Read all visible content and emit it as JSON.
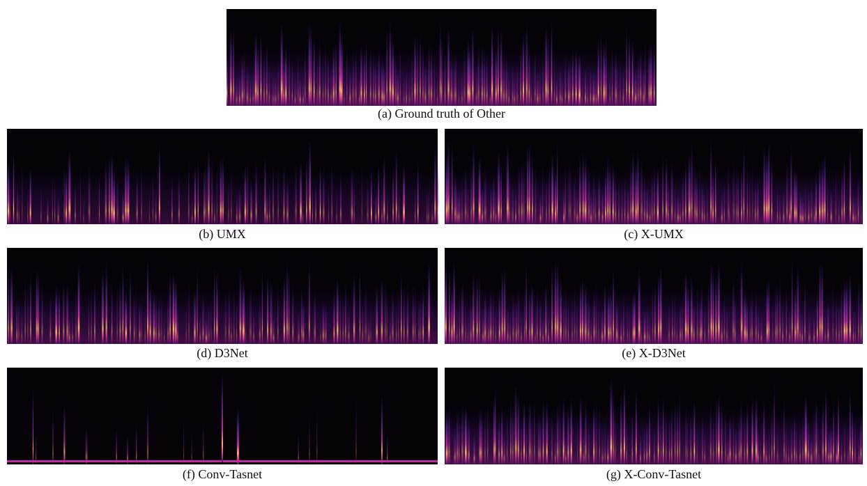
{
  "panels": [
    {
      "caption": "(a) Ground truth of Other"
    },
    {
      "caption": "(b) UMX"
    },
    {
      "caption": "(c) X-UMX"
    },
    {
      "caption": "(d) D3Net"
    },
    {
      "caption": "(e) X-D3Net"
    },
    {
      "caption": "(f) Conv-Tasnet"
    },
    {
      "caption": "(g) X-Conv-Tasnet"
    }
  ]
}
